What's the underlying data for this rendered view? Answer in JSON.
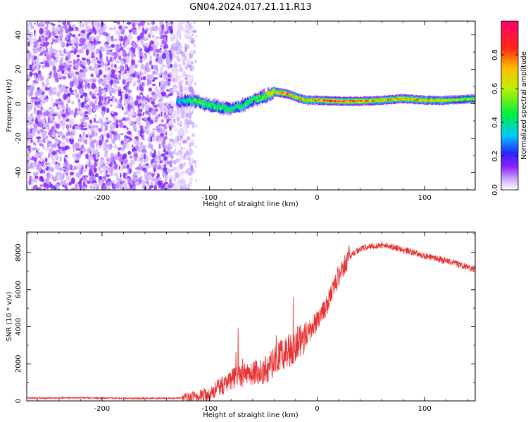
{
  "title": "GN04.2024.017.21.11.R13",
  "chart_data": [
    {
      "type": "heatmap",
      "name": "spectrogram",
      "xlabel": "Height of straight line (km)",
      "ylabel": "Frequency (Hz)",
      "xlim": [
        -270,
        147
      ],
      "ylim": [
        -50,
        48
      ],
      "xticks": [
        -200,
        -100,
        0,
        100
      ],
      "yticks": [
        -40,
        -20,
        0,
        20,
        40
      ],
      "colorbar": {
        "label": "Normalized spectral amplitude",
        "range": [
          0,
          1
        ],
        "ticks": [
          0.0,
          0.2,
          0.4,
          0.6,
          0.8
        ],
        "colormap": "rainbow",
        "low_color": "#ffffff",
        "high_color": "#ff0066"
      },
      "noise_region": {
        "x": [
          -270,
          -120
        ],
        "y": [
          -50,
          48
        ],
        "typical_amplitude": 0.1
      },
      "signal_track": [
        {
          "x": -130,
          "y": 1,
          "amplitude": 0.35
        },
        {
          "x": -120,
          "y": 2,
          "amplitude": 0.45
        },
        {
          "x": -110,
          "y": 1,
          "amplitude": 0.55
        },
        {
          "x": -100,
          "y": -1,
          "amplitude": 0.5
        },
        {
          "x": -90,
          "y": -2,
          "amplitude": 0.5
        },
        {
          "x": -80,
          "y": -3,
          "amplitude": 0.45
        },
        {
          "x": -70,
          "y": -1,
          "amplitude": 0.45
        },
        {
          "x": -60,
          "y": 2,
          "amplitude": 0.5
        },
        {
          "x": -50,
          "y": 4,
          "amplitude": 0.55
        },
        {
          "x": -40,
          "y": 7,
          "amplitude": 0.75
        },
        {
          "x": -30,
          "y": 6,
          "amplitude": 0.8
        },
        {
          "x": -20,
          "y": 4,
          "amplitude": 0.75
        },
        {
          "x": -10,
          "y": 2,
          "amplitude": 0.7
        },
        {
          "x": 0,
          "y": 2,
          "amplitude": 0.8
        },
        {
          "x": 20,
          "y": 1.5,
          "amplitude": 0.9
        },
        {
          "x": 40,
          "y": 1.5,
          "amplitude": 0.85
        },
        {
          "x": 60,
          "y": 2,
          "amplitude": 0.75
        },
        {
          "x": 80,
          "y": 3,
          "amplitude": 0.8
        },
        {
          "x": 100,
          "y": 2,
          "amplitude": 0.75
        },
        {
          "x": 120,
          "y": 2,
          "amplitude": 0.65
        },
        {
          "x": 147,
          "y": 3,
          "amplitude": 0.55
        }
      ]
    },
    {
      "type": "line",
      "name": "snr",
      "xlabel": "Height of straight line (km)",
      "ylabel": "SNR (10 * v/v)",
      "xlim": [
        -270,
        147
      ],
      "ylim": [
        0,
        9100
      ],
      "xticks": [
        -200,
        -100,
        0,
        100
      ],
      "yticks": [
        0,
        2000,
        4000,
        6000,
        8000
      ],
      "color": "#e83333",
      "x": [
        -270,
        -250,
        -230,
        -210,
        -190,
        -170,
        -150,
        -130,
        -120,
        -110,
        -100,
        -90,
        -80,
        -70,
        -60,
        -50,
        -40,
        -30,
        -20,
        -10,
        0,
        10,
        20,
        30,
        40,
        50,
        60,
        70,
        80,
        90,
        100,
        110,
        120,
        130,
        140,
        147
      ],
      "y": [
        150,
        150,
        170,
        160,
        150,
        140,
        140,
        150,
        170,
        230,
        400,
        750,
        1200,
        1300,
        1500,
        1600,
        2100,
        2600,
        3000,
        3600,
        4300,
        5300,
        6800,
        7800,
        8200,
        8350,
        8400,
        8300,
        8150,
        8000,
        7800,
        7700,
        7550,
        7400,
        7200,
        7100
      ]
    }
  ]
}
